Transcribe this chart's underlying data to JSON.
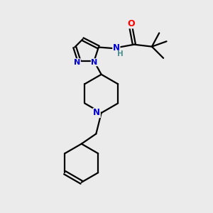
{
  "bg_color": "#ebebeb",
  "bond_color": "#000000",
  "N_color": "#0000cc",
  "O_color": "#ff0000",
  "H_color": "#4a9090",
  "line_width": 1.6,
  "figsize": [
    3.0,
    3.0
  ],
  "dpi": 100,
  "xlim": [
    0,
    10
  ],
  "ylim": [
    0,
    10
  ]
}
